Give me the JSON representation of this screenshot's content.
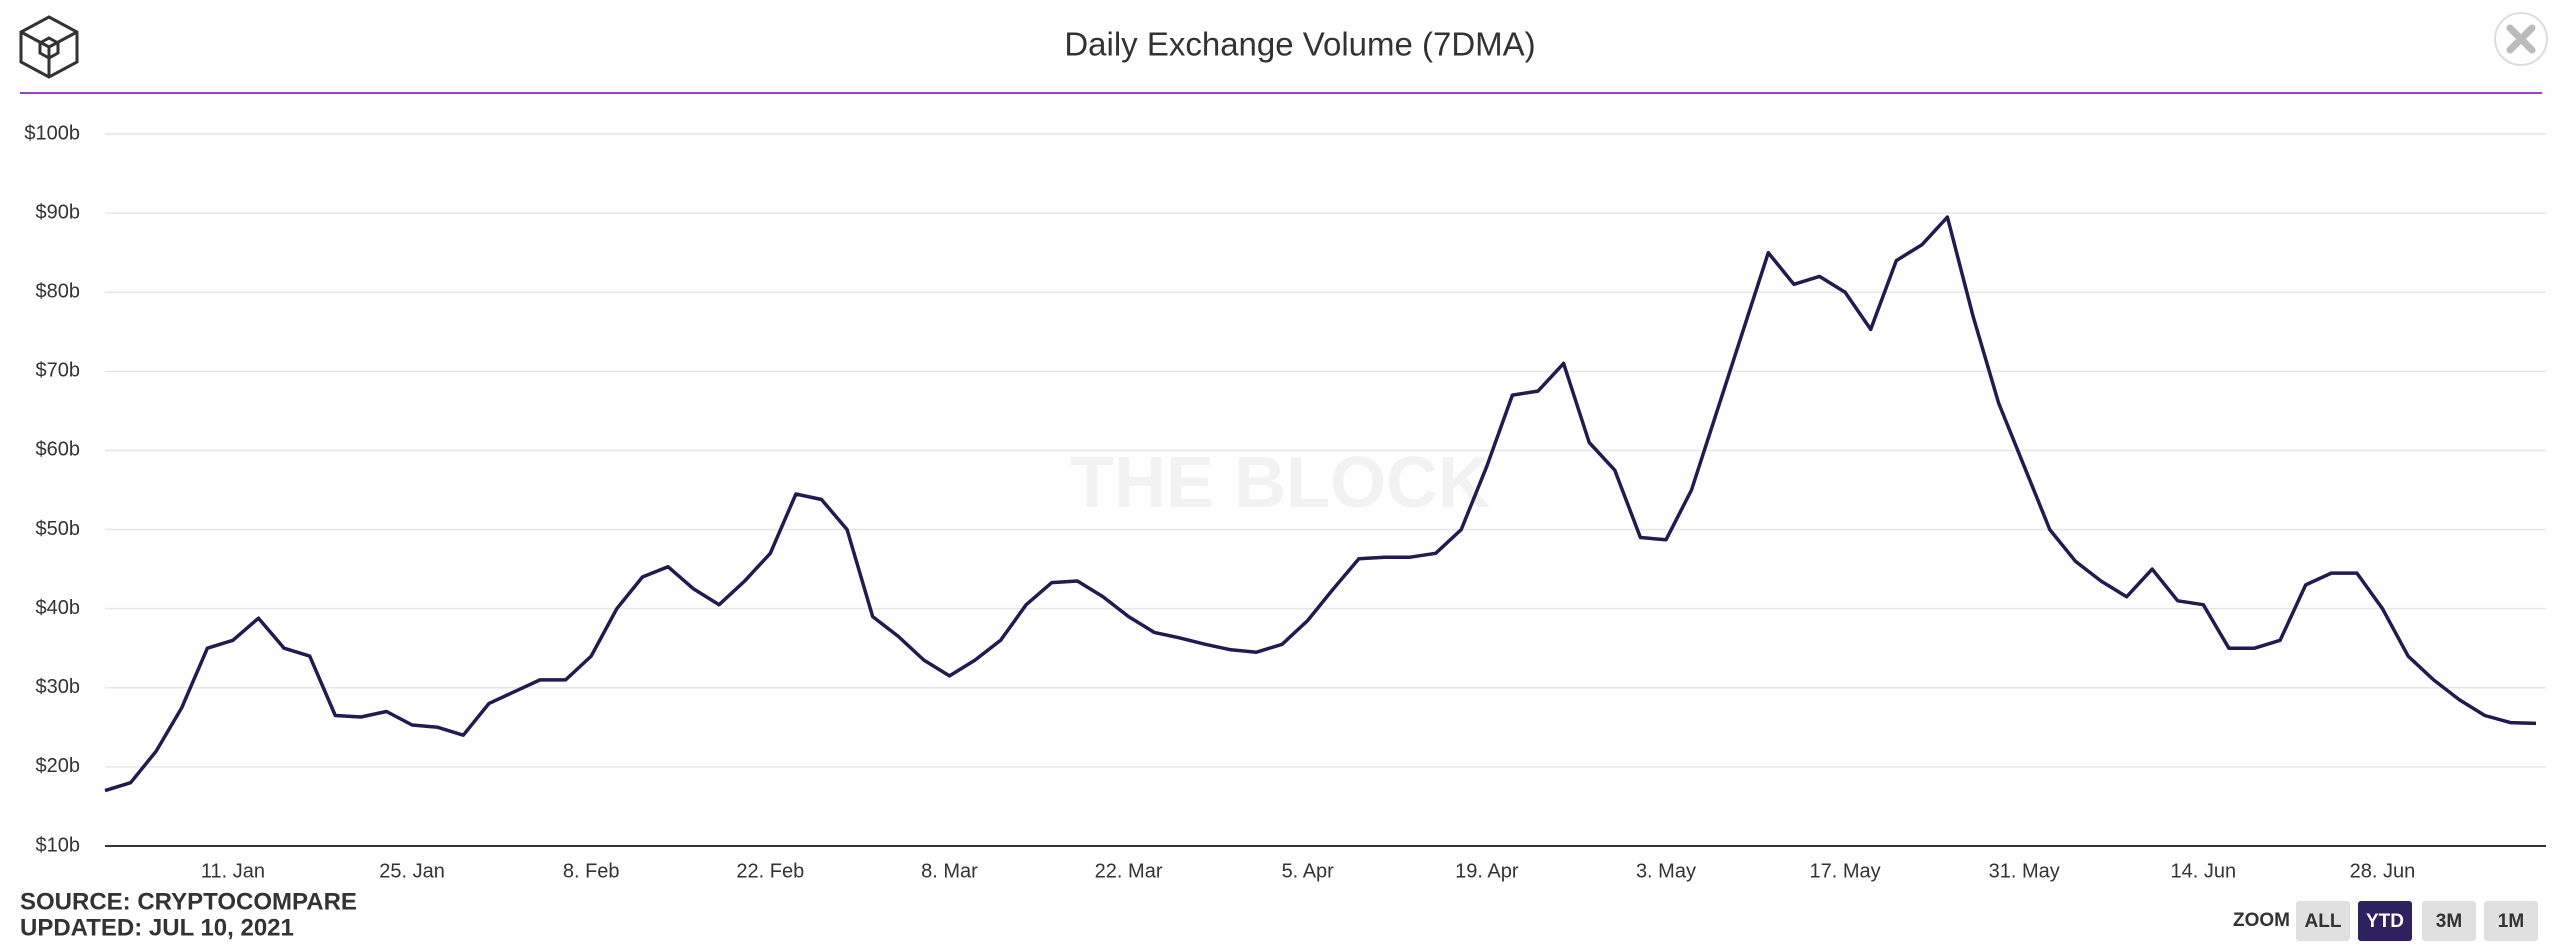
{
  "chart_data": {
    "type": "line",
    "title": "Daily Exchange Volume (7DMA)",
    "watermark": "THE BLOCK",
    "source": "SOURCE: CRYPTOCOMPARE",
    "updated": "UPDATED: JUL 10, 2021",
    "zoom_label": "ZOOM",
    "zoom_buttons": [
      "ALL",
      "YTD",
      "3M",
      "1M"
    ],
    "active_zoom": "YTD",
    "grid": true,
    "ylim": [
      10,
      100
    ],
    "yticks": [
      {
        "value": 10,
        "label": "$10b"
      },
      {
        "value": 20,
        "label": "$20b"
      },
      {
        "value": 30,
        "label": "$30b"
      },
      {
        "value": 40,
        "label": "$40b"
      },
      {
        "value": 50,
        "label": "$50b"
      },
      {
        "value": 60,
        "label": "$60b"
      },
      {
        "value": 70,
        "label": "$70b"
      },
      {
        "value": 80,
        "label": "$80b"
      },
      {
        "value": 90,
        "label": "$90b"
      },
      {
        "value": 100,
        "label": "$100b"
      }
    ],
    "categories": [
      null,
      null,
      null,
      null,
      null,
      "11. Jan",
      null,
      null,
      null,
      null,
      null,
      null,
      "25. Jan",
      null,
      null,
      null,
      null,
      null,
      null,
      "8. Feb",
      null,
      null,
      null,
      null,
      null,
      null,
      "22. Feb",
      null,
      null,
      null,
      null,
      null,
      null,
      "8. Mar",
      null,
      null,
      null,
      null,
      null,
      null,
      "22. Mar",
      null,
      null,
      null,
      null,
      null,
      null,
      "5. Apr",
      null,
      null,
      null,
      null,
      null,
      null,
      "19. Apr",
      null,
      null,
      null,
      null,
      null,
      null,
      "3. May",
      null,
      null,
      null,
      null,
      null,
      null,
      "17. May",
      null,
      null,
      null,
      null,
      null,
      null,
      "31. May",
      null,
      null,
      null,
      null,
      null,
      null,
      "14. Jun",
      null,
      null,
      null,
      null,
      null,
      null,
      "28. Jun",
      null,
      null,
      null,
      null,
      null,
      null
    ],
    "series": [
      {
        "name": "Daily Exchange Volume (7DMA)",
        "color": "#231a4f",
        "values": [
          17,
          18,
          22,
          27.5,
          35,
          36,
          38.8,
          35,
          34,
          26.5,
          26.3,
          27,
          25.3,
          25,
          24,
          28,
          29.5,
          31,
          31,
          34,
          40,
          44,
          45.3,
          42.5,
          40.5,
          43.5,
          47,
          54.5,
          53.8,
          50,
          39,
          36.5,
          33.5,
          31.5,
          33.5,
          36,
          40.5,
          43.3,
          43.5,
          41.5,
          39,
          37,
          36.3,
          35.5,
          34.8,
          34.5,
          35.5,
          38.5,
          42.5,
          46.3,
          46.5,
          46.5,
          47,
          50,
          58,
          67,
          67.5,
          71,
          61,
          57.5,
          49,
          48.7,
          55,
          65,
          75,
          85,
          81,
          82,
          80,
          75.3,
          84,
          86,
          89.5,
          77,
          66,
          58,
          50,
          46,
          43.5,
          41.5,
          45,
          41,
          40.5,
          35,
          35,
          36,
          43,
          44.5,
          44.5,
          40,
          34,
          31,
          28.5,
          26.5,
          25.6,
          25.5
        ]
      }
    ]
  }
}
